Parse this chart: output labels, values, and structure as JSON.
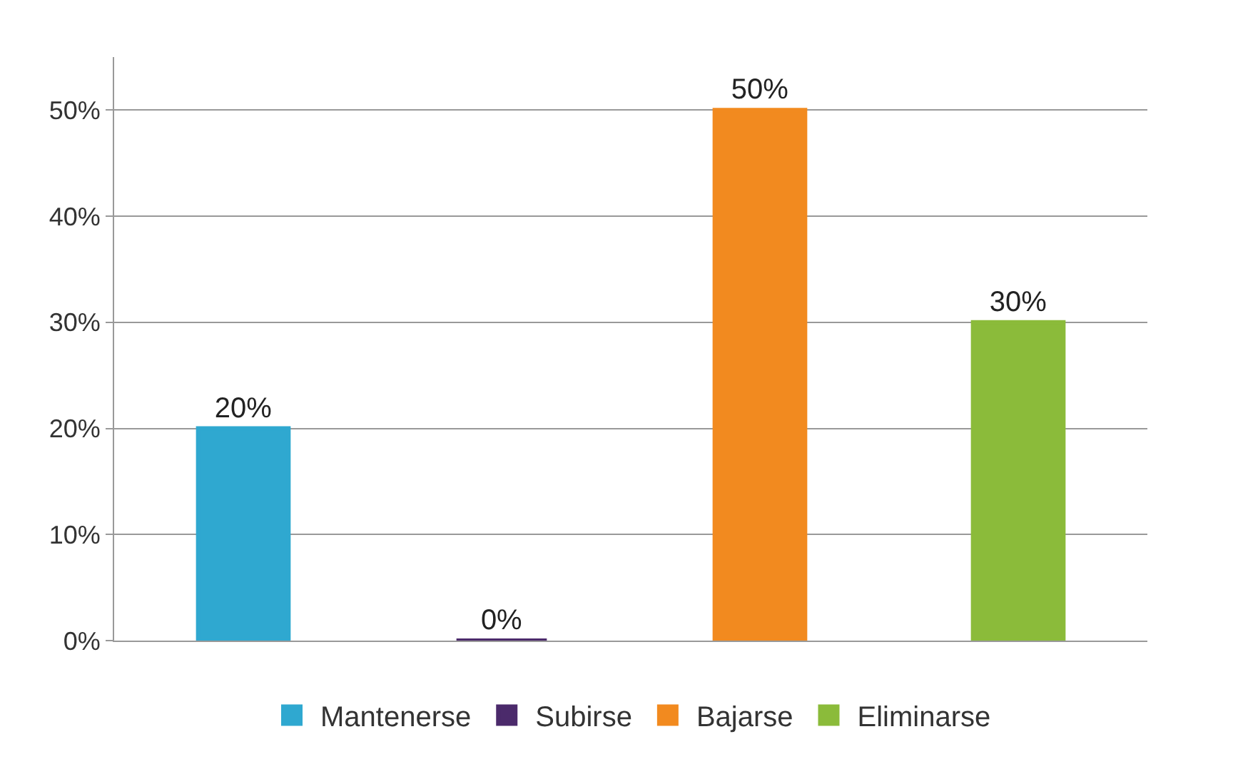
{
  "chart_data": {
    "type": "bar",
    "categories": [
      null,
      null,
      null,
      null
    ],
    "series": [
      {
        "name": "Mantenerse",
        "color": "#2fa8d0",
        "values": [
          20,
          null,
          null,
          null
        ],
        "value_labels": [
          "20%",
          null,
          null,
          null
        ]
      },
      {
        "name": "Subirse",
        "color": "#4b2a6b",
        "values": [
          null,
          0,
          null,
          null
        ],
        "value_labels": [
          null,
          "0%",
          null,
          null
        ]
      },
      {
        "name": "Bajarse",
        "color": "#f28a1f",
        "values": [
          null,
          null,
          50,
          null
        ],
        "value_labels": [
          null,
          null,
          "50%",
          null
        ]
      },
      {
        "name": "Eliminarse",
        "color": "#8bbb3a",
        "values": [
          null,
          null,
          null,
          30
        ],
        "value_labels": [
          null,
          null,
          null,
          "30%"
        ]
      }
    ],
    "ylim": [
      0,
      55
    ],
    "yticks": [
      {
        "value": 0,
        "label": "0%"
      },
      {
        "value": 10,
        "label": "10%"
      },
      {
        "value": 20,
        "label": "20%"
      },
      {
        "value": 30,
        "label": "30%"
      },
      {
        "value": 40,
        "label": "40%"
      },
      {
        "value": 50,
        "label": "50%"
      }
    ],
    "grid": "y",
    "legend": "bottom"
  }
}
